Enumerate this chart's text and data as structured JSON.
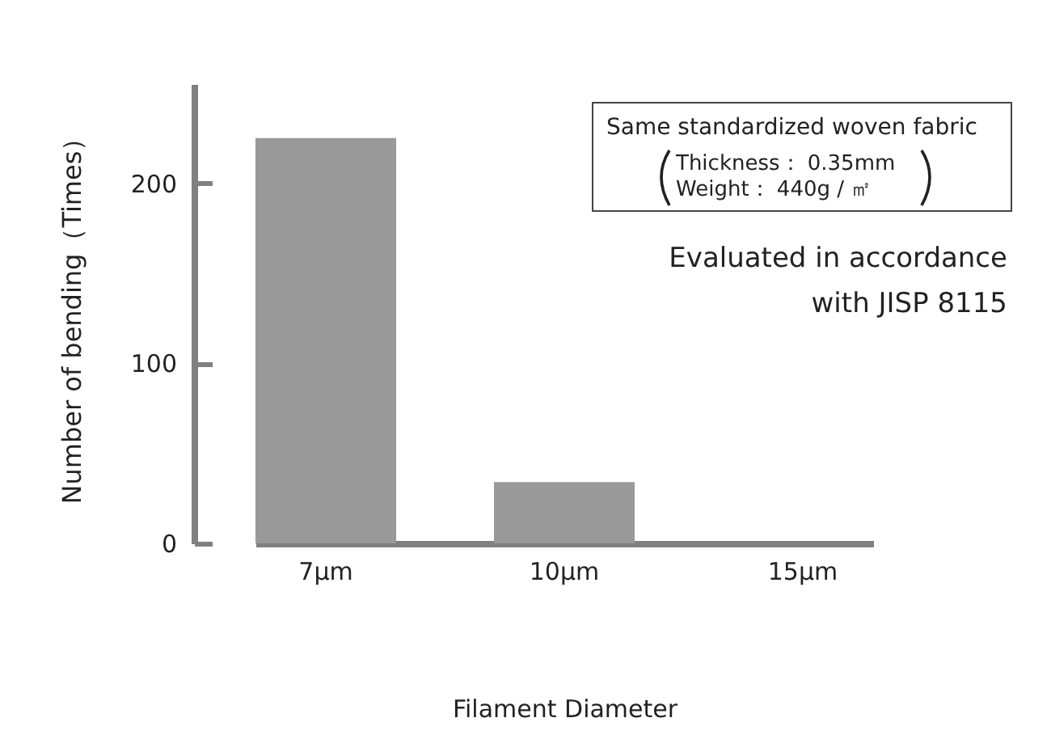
{
  "chart_data": {
    "type": "bar",
    "xlabel": "Filament Diameter",
    "ylabel": "Number of bending（Times）",
    "categories": [
      "7μm",
      "10μm",
      "15μm"
    ],
    "values": [
      225,
      34,
      0
    ],
    "color": "#999999",
    "ylim": [
      0,
      255
    ],
    "yticks": [
      0,
      100,
      200
    ],
    "grid": false,
    "annotations": [
      "Same standardized woven fabric",
      "Thickness： 0.35mm",
      "Weight： 440g / ㎡",
      "Evaluated in accordance",
      "with JISP 8115"
    ]
  }
}
